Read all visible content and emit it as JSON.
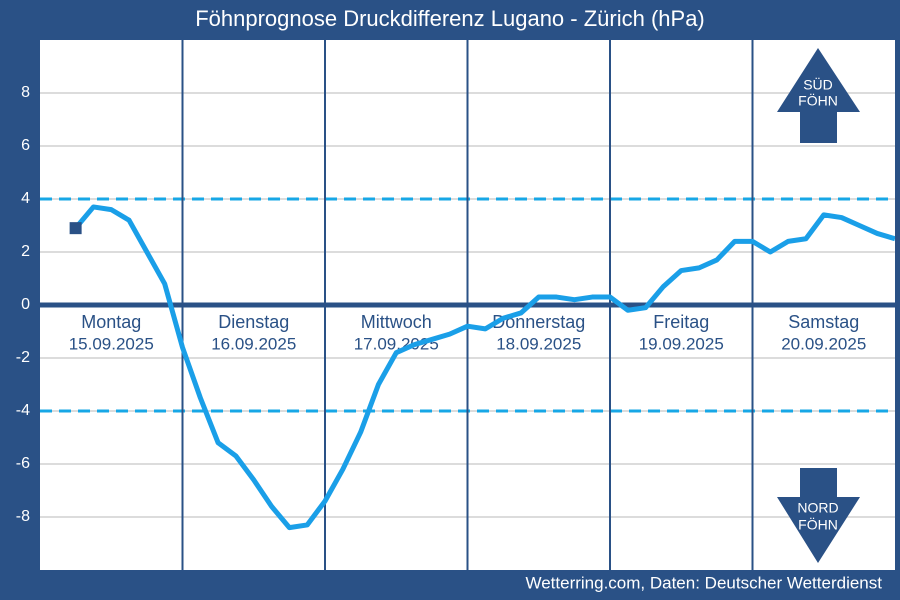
{
  "chart_data": {
    "type": "line",
    "title": "Föhnprognose Druckdifferenz Lugano - Zürich (hPa)",
    "source": "Wetterring.com, Daten: Deutscher Wetterdienst",
    "categories": [
      "Montag",
      "Dienstag",
      "Mittwoch",
      "Donnerstag",
      "Freitag",
      "Samstag"
    ],
    "dates": [
      "15.09.2025",
      "16.09.2025",
      "17.09.2025",
      "18.09.2025",
      "19.09.2025",
      "20.09.2025"
    ],
    "xlim": [
      0,
      144
    ],
    "x": [
      6,
      9,
      12,
      15,
      18,
      21,
      24,
      27,
      30,
      33,
      36,
      39,
      42,
      45,
      48,
      51,
      54,
      57,
      60,
      63,
      66,
      69,
      72,
      75,
      78,
      81,
      84,
      87,
      90,
      93,
      96,
      99,
      102,
      105,
      108,
      111,
      114,
      117,
      120,
      123,
      126,
      129,
      132,
      135,
      138,
      141,
      144
    ],
    "series": [
      {
        "color": "#1a9fe8",
        "values": [
          2.9,
          3.7,
          3.6,
          3.2,
          2.0,
          0.8,
          -1.6,
          -3.5,
          -5.2,
          -5.7,
          -6.6,
          -7.6,
          -8.4,
          -8.3,
          -7.4,
          -6.2,
          -4.8,
          -3.0,
          -1.8,
          -1.5,
          -1.3,
          -1.1,
          -0.8,
          -0.9,
          -0.5,
          -0.3,
          0.3,
          0.3,
          0.2,
          0.3,
          0.3,
          -0.2,
          -0.1,
          0.7,
          1.3,
          1.4,
          1.7,
          2.4,
          2.4,
          2.0,
          2.4,
          2.5,
          3.4,
          3.3,
          3.0,
          2.7,
          2.5
        ]
      }
    ],
    "ylim": [
      -10,
      10
    ],
    "yticks": [
      8,
      6,
      4,
      2,
      0,
      -2,
      -4,
      -6,
      -8
    ],
    "grid": true,
    "thresholds": [
      4,
      -4
    ],
    "threshold_color": "#17a7e6",
    "annotations": [
      [
        "SÜD",
        "FÖHN"
      ],
      [
        "NORD",
        "FÖHN"
      ]
    ]
  }
}
